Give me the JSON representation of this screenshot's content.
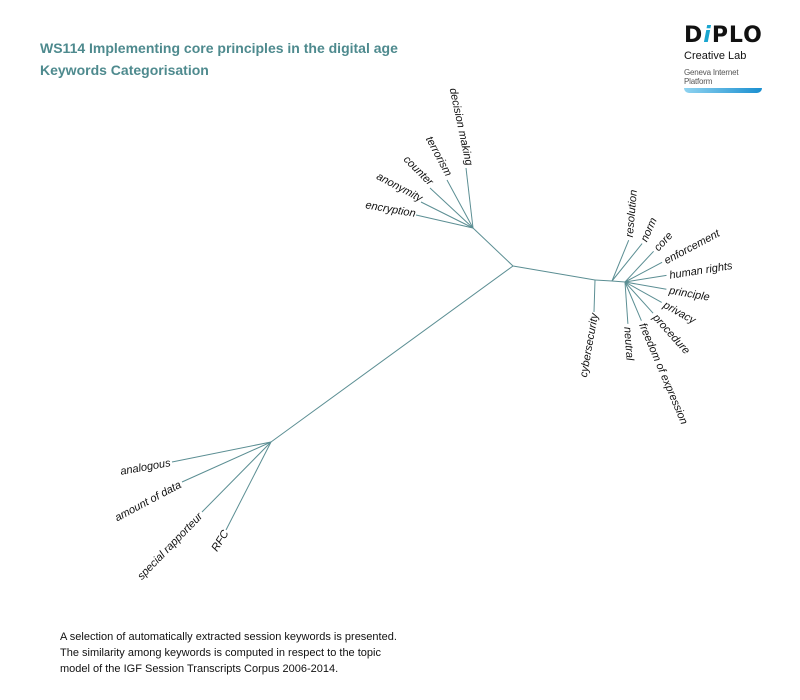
{
  "header": {
    "title": "WS114 Implementing core principles in the digital age",
    "subtitle": "Keywords Categorisation"
  },
  "logo": {
    "brand_pre": "D",
    "brand_i": "i",
    "brand_post": "PLO",
    "sub": "Creative Lab",
    "platform": "Geneva Internet Platform"
  },
  "tree": {
    "line_color": "#5b8e93",
    "top_cluster": [
      "decision making",
      "terrorism",
      "counter",
      "anonymity",
      "encryption"
    ],
    "left_cluster": [
      "analogous",
      "amount of data",
      "special rapporteur",
      "RFC"
    ],
    "right_cluster": [
      "cybersecurity",
      "resolution",
      "norm",
      "core",
      "enforcement",
      "human rights",
      "principle",
      "privacy",
      "procedure",
      "freedom of expression",
      "neutral"
    ]
  },
  "caption": {
    "line1": "A selection of automatically extracted session keywords is presented.",
    "line2": "The similarity among keywords is computed in respect to the topic",
    "line3": "model of the IGF Session Transcripts Corpus 2006-2014."
  }
}
